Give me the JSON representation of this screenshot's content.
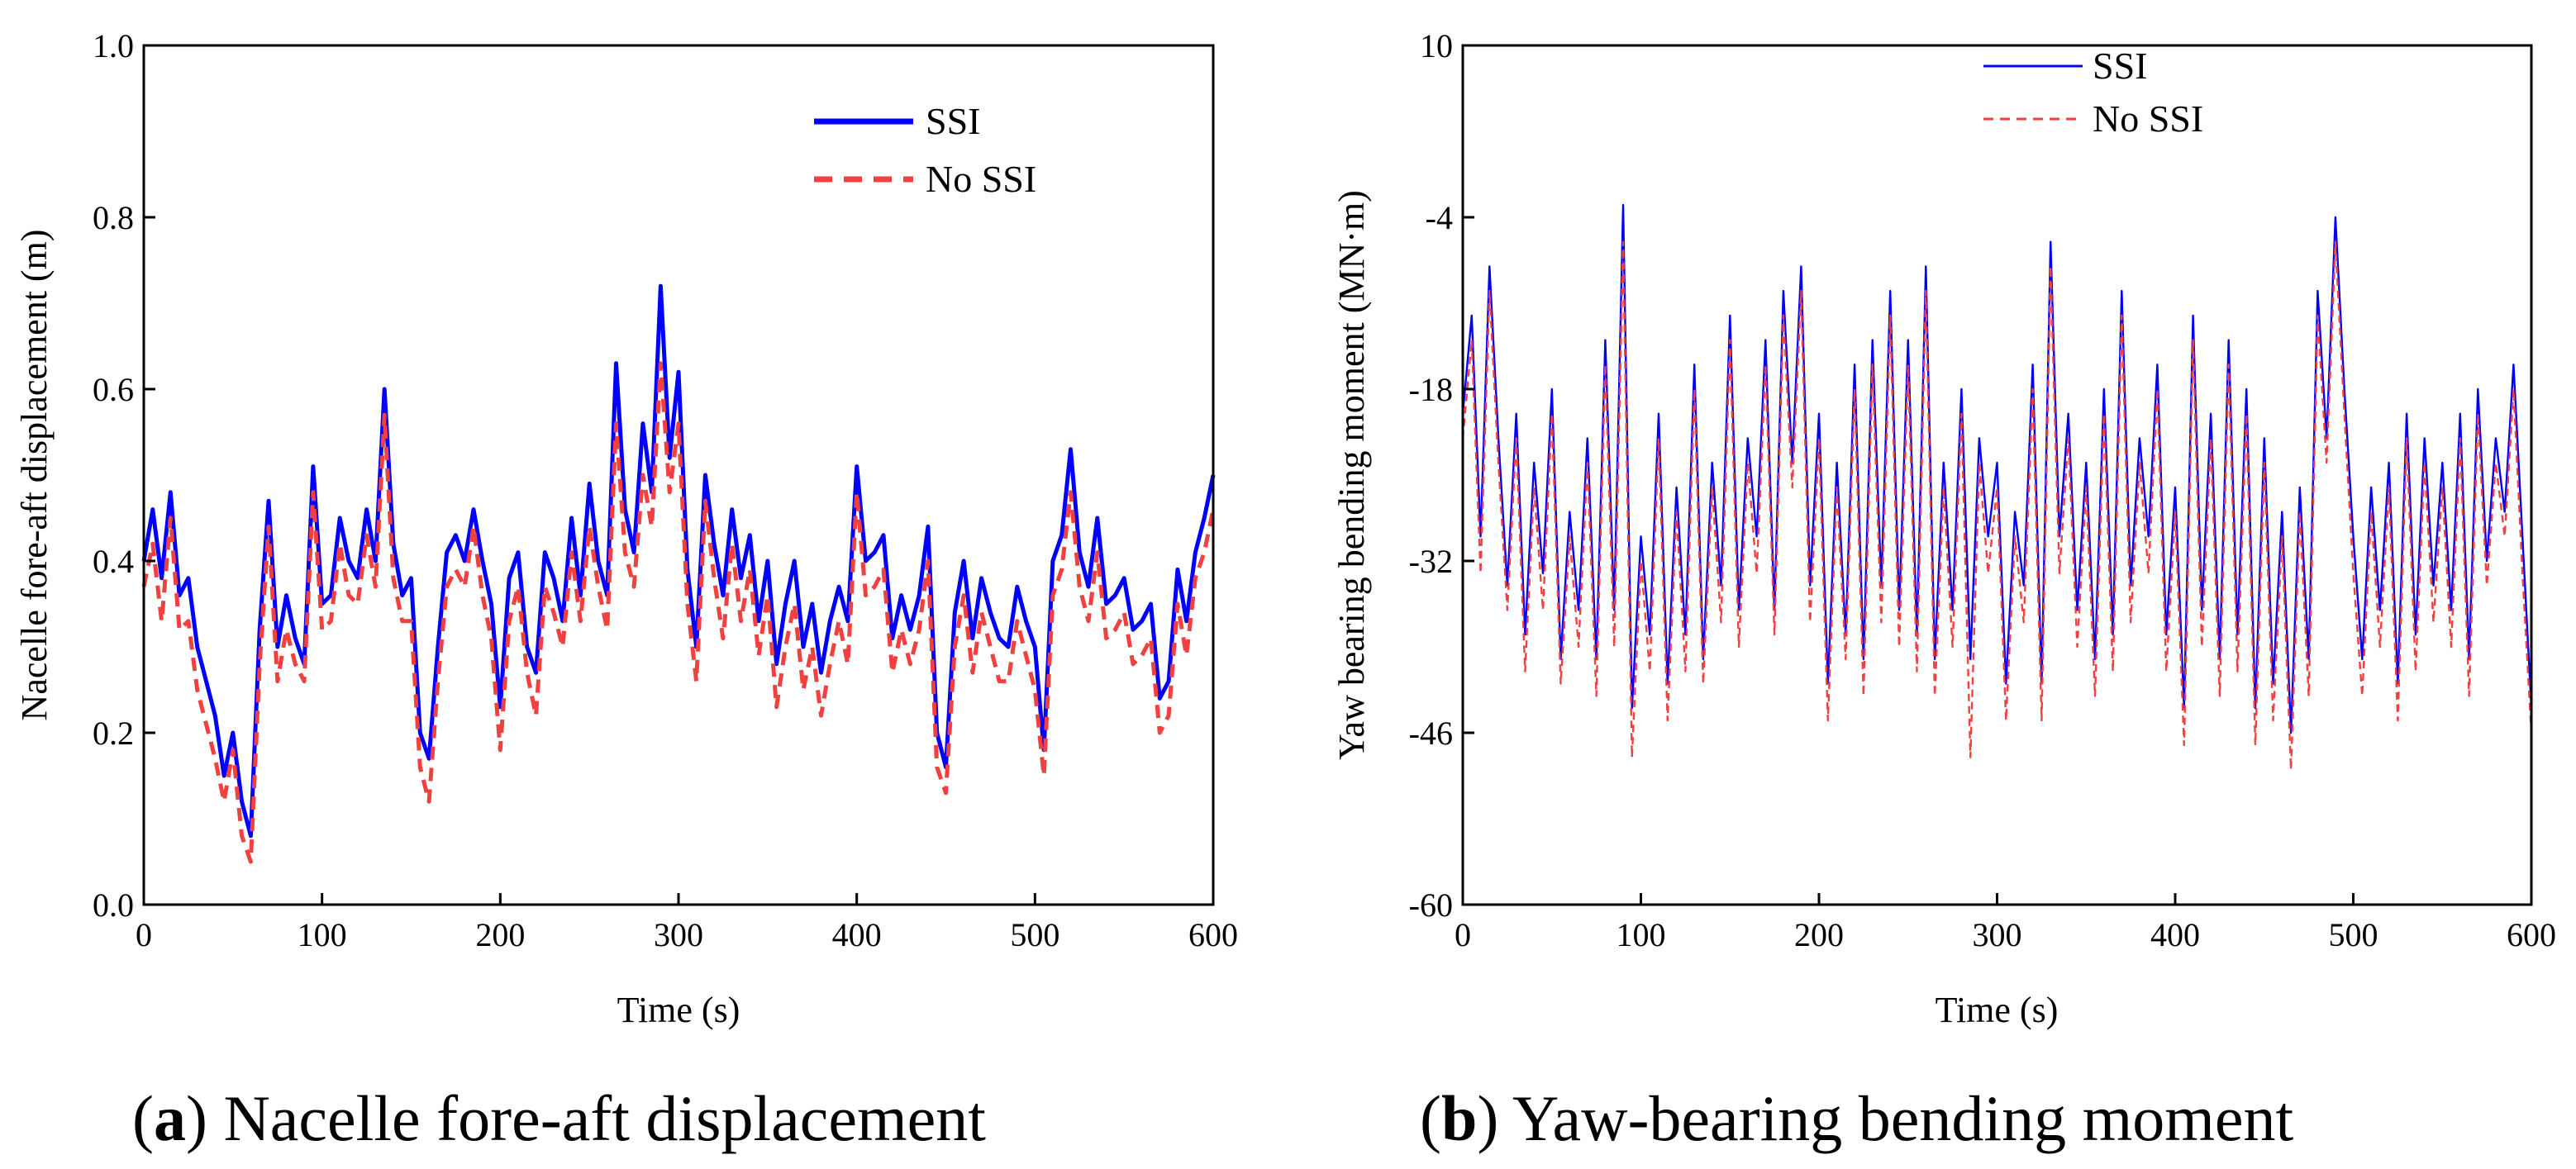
{
  "chart_data": [
    {
      "type": "line",
      "panel": "a",
      "xlabel": "Time (s)",
      "ylabel": "Nacelle fore-aft displacement (m)",
      "xlim": [
        0,
        600
      ],
      "ylim": [
        0.0,
        1.0
      ],
      "xticks": [
        0,
        100,
        200,
        300,
        400,
        500,
        600
      ],
      "yticks": [
        0.0,
        0.2,
        0.4,
        0.6,
        0.8,
        1.0
      ],
      "xtick_labels": [
        "0",
        "100",
        "200",
        "300",
        "400",
        "500",
        "600"
      ],
      "ytick_labels": [
        "0.0",
        "0.2",
        "0.4",
        "0.6",
        "0.8",
        "1.0"
      ],
      "legend_position": "top-right",
      "caption_letter": "a",
      "caption_text": "Nacelle fore-aft displacement",
      "x": [
        0,
        5,
        10,
        15,
        20,
        25,
        30,
        35,
        40,
        45,
        50,
        55,
        60,
        65,
        70,
        75,
        80,
        85,
        90,
        95,
        100,
        105,
        110,
        115,
        120,
        125,
        130,
        135,
        140,
        145,
        150,
        155,
        160,
        165,
        170,
        175,
        180,
        185,
        190,
        195,
        200,
        205,
        210,
        215,
        220,
        225,
        230,
        235,
        240,
        245,
        250,
        255,
        260,
        265,
        270,
        275,
        280,
        285,
        290,
        295,
        300,
        305,
        310,
        315,
        320,
        325,
        330,
        335,
        340,
        345,
        350,
        355,
        360,
        365,
        370,
        375,
        380,
        385,
        390,
        395,
        400,
        405,
        410,
        415,
        420,
        425,
        430,
        435,
        440,
        445,
        450,
        455,
        460,
        465,
        470,
        475,
        480,
        485,
        490,
        495,
        500,
        505,
        510,
        515,
        520,
        525,
        530,
        535,
        540,
        545,
        550,
        555,
        560,
        565,
        570,
        575,
        580,
        585,
        590,
        595,
        600
      ],
      "series": [
        {
          "name": "SSI",
          "color": "#0000ff",
          "values": [
            0.4,
            0.46,
            0.38,
            0.48,
            0.36,
            0.38,
            0.3,
            0.26,
            0.22,
            0.15,
            0.2,
            0.12,
            0.08,
            0.32,
            0.47,
            0.3,
            0.36,
            0.31,
            0.28,
            0.51,
            0.35,
            0.36,
            0.45,
            0.4,
            0.38,
            0.46,
            0.4,
            0.6,
            0.42,
            0.36,
            0.38,
            0.2,
            0.17,
            0.3,
            0.41,
            0.43,
            0.4,
            0.46,
            0.4,
            0.35,
            0.23,
            0.38,
            0.41,
            0.3,
            0.27,
            0.41,
            0.38,
            0.33,
            0.45,
            0.36,
            0.49,
            0.4,
            0.36,
            0.63,
            0.46,
            0.41,
            0.56,
            0.48,
            0.72,
            0.52,
            0.62,
            0.39,
            0.3,
            0.5,
            0.42,
            0.36,
            0.46,
            0.38,
            0.43,
            0.33,
            0.4,
            0.28,
            0.35,
            0.4,
            0.3,
            0.35,
            0.27,
            0.33,
            0.37,
            0.33,
            0.51,
            0.4,
            0.41,
            0.43,
            0.31,
            0.36,
            0.32,
            0.36,
            0.44,
            0.2,
            0.16,
            0.34,
            0.4,
            0.31,
            0.38,
            0.34,
            0.31,
            0.3,
            0.37,
            0.33,
            0.3,
            0.18,
            0.4,
            0.43,
            0.53,
            0.41,
            0.37,
            0.45,
            0.35,
            0.36,
            0.38,
            0.32,
            0.33,
            0.35,
            0.24,
            0.26,
            0.39,
            0.33,
            0.41,
            0.45,
            0.5
          ]
        },
        {
          "name": "No SSI",
          "color": "#f04040",
          "values": [
            0.37,
            0.42,
            0.33,
            0.45,
            0.32,
            0.33,
            0.25,
            0.21,
            0.17,
            0.12,
            0.18,
            0.08,
            0.05,
            0.28,
            0.44,
            0.26,
            0.32,
            0.28,
            0.26,
            0.48,
            0.32,
            0.33,
            0.42,
            0.36,
            0.35,
            0.43,
            0.37,
            0.57,
            0.38,
            0.33,
            0.33,
            0.16,
            0.12,
            0.26,
            0.37,
            0.39,
            0.37,
            0.44,
            0.36,
            0.31,
            0.18,
            0.33,
            0.37,
            0.27,
            0.22,
            0.37,
            0.34,
            0.3,
            0.41,
            0.33,
            0.44,
            0.37,
            0.32,
            0.56,
            0.41,
            0.37,
            0.5,
            0.44,
            0.63,
            0.48,
            0.56,
            0.35,
            0.26,
            0.47,
            0.38,
            0.31,
            0.42,
            0.33,
            0.39,
            0.29,
            0.36,
            0.23,
            0.3,
            0.35,
            0.25,
            0.3,
            0.22,
            0.28,
            0.33,
            0.28,
            0.48,
            0.36,
            0.37,
            0.39,
            0.27,
            0.32,
            0.28,
            0.32,
            0.4,
            0.16,
            0.13,
            0.3,
            0.36,
            0.27,
            0.34,
            0.3,
            0.26,
            0.26,
            0.33,
            0.29,
            0.25,
            0.15,
            0.36,
            0.39,
            0.48,
            0.37,
            0.33,
            0.41,
            0.31,
            0.32,
            0.34,
            0.28,
            0.29,
            0.31,
            0.2,
            0.22,
            0.35,
            0.29,
            0.38,
            0.41,
            0.46
          ]
        }
      ]
    },
    {
      "type": "line",
      "panel": "b",
      "xlabel": "Time (s)",
      "ylabel": "Yaw bearing bending moment (MN·m)",
      "xlim": [
        0,
        600
      ],
      "ylim": [
        -60,
        10
      ],
      "xticks": [
        0,
        100,
        200,
        300,
        400,
        500,
        600
      ],
      "yticks": [
        -60,
        -46,
        -32,
        -18,
        -4,
        10
      ],
      "xtick_labels": [
        "0",
        "100",
        "200",
        "300",
        "400",
        "500",
        "600"
      ],
      "ytick_labels": [
        "-60",
        "-46",
        "-32",
        "-18",
        "-4",
        "10"
      ],
      "legend_position": "top-center",
      "caption_letter": "b",
      "caption_text": "Yaw-bearing bending moment",
      "x": [
        0,
        5,
        10,
        15,
        20,
        25,
        30,
        35,
        40,
        45,
        50,
        55,
        60,
        65,
        70,
        75,
        80,
        85,
        90,
        95,
        100,
        105,
        110,
        115,
        120,
        125,
        130,
        135,
        140,
        145,
        150,
        155,
        160,
        165,
        170,
        175,
        180,
        185,
        190,
        195,
        200,
        205,
        210,
        215,
        220,
        225,
        230,
        235,
        240,
        245,
        250,
        255,
        260,
        265,
        270,
        275,
        280,
        285,
        290,
        295,
        300,
        305,
        310,
        315,
        320,
        325,
        330,
        335,
        340,
        345,
        350,
        355,
        360,
        365,
        370,
        375,
        380,
        385,
        390,
        395,
        400,
        405,
        410,
        415,
        420,
        425,
        430,
        435,
        440,
        445,
        450,
        455,
        460,
        465,
        470,
        475,
        480,
        485,
        490,
        495,
        500,
        505,
        510,
        515,
        520,
        525,
        530,
        535,
        540,
        545,
        550,
        555,
        560,
        565,
        570,
        575,
        580,
        585,
        590,
        595,
        600
      ],
      "series": [
        {
          "name": "SSI",
          "color": "#0000ff",
          "values": [
            -20,
            -12,
            -30,
            -8,
            -22,
            -34,
            -20,
            -38,
            -24,
            -33,
            -18,
            -40,
            -28,
            -36,
            -22,
            -40,
            -14,
            -36,
            -3,
            -44,
            -30,
            -38,
            -20,
            -42,
            -26,
            -38,
            -16,
            -40,
            -24,
            -34,
            -12,
            -36,
            -22,
            -30,
            -14,
            -36,
            -10,
            -24,
            -8,
            -34,
            -20,
            -42,
            -24,
            -38,
            -16,
            -40,
            -14,
            -34,
            -10,
            -36,
            -14,
            -38,
            -8,
            -40,
            -24,
            -36,
            -18,
            -40,
            -22,
            -30,
            -24,
            -42,
            -28,
            -34,
            -16,
            -42,
            -6,
            -30,
            -20,
            -36,
            -24,
            -40,
            -18,
            -38,
            -10,
            -34,
            -22,
            -30,
            -16,
            -38,
            -26,
            -44,
            -12,
            -36,
            -20,
            -40,
            -14,
            -38,
            -18,
            -44,
            -22,
            -42,
            -28,
            -46,
            -26,
            -40,
            -10,
            -22,
            -4,
            -18,
            -30,
            -40,
            -26,
            -36,
            -24,
            -42,
            -20,
            -38,
            -22,
            -34,
            -24,
            -36,
            -20,
            -40,
            -18,
            -32,
            -22,
            -28,
            -16,
            -30,
            -44
          ]
        },
        {
          "name": "No SSI",
          "color": "#f04040",
          "values": [
            -22,
            -14,
            -33,
            -10,
            -24,
            -36,
            -22,
            -41,
            -26,
            -36,
            -20,
            -42,
            -30,
            -39,
            -24,
            -43,
            -16,
            -39,
            -6,
            -48,
            -32,
            -41,
            -22,
            -45,
            -28,
            -41,
            -18,
            -42,
            -26,
            -37,
            -14,
            -39,
            -24,
            -33,
            -16,
            -38,
            -12,
            -26,
            -10,
            -37,
            -22,
            -45,
            -26,
            -40,
            -18,
            -43,
            -16,
            -37,
            -12,
            -39,
            -16,
            -41,
            -10,
            -43,
            -26,
            -39,
            -20,
            -48,
            -24,
            -33,
            -26,
            -45,
            -30,
            -37,
            -18,
            -45,
            -8,
            -33,
            -22,
            -39,
            -26,
            -43,
            -20,
            -41,
            -12,
            -37,
            -24,
            -33,
            -18,
            -41,
            -28,
            -47,
            -14,
            -39,
            -22,
            -43,
            -16,
            -41,
            -20,
            -47,
            -24,
            -45,
            -30,
            -49,
            -28,
            -43,
            -12,
            -24,
            -6,
            -20,
            -33,
            -43,
            -28,
            -39,
            -26,
            -45,
            -22,
            -41,
            -24,
            -37,
            -26,
            -39,
            -22,
            -43,
            -20,
            -34,
            -24,
            -30,
            -18,
            -33,
            -46
          ]
        }
      ]
    }
  ]
}
